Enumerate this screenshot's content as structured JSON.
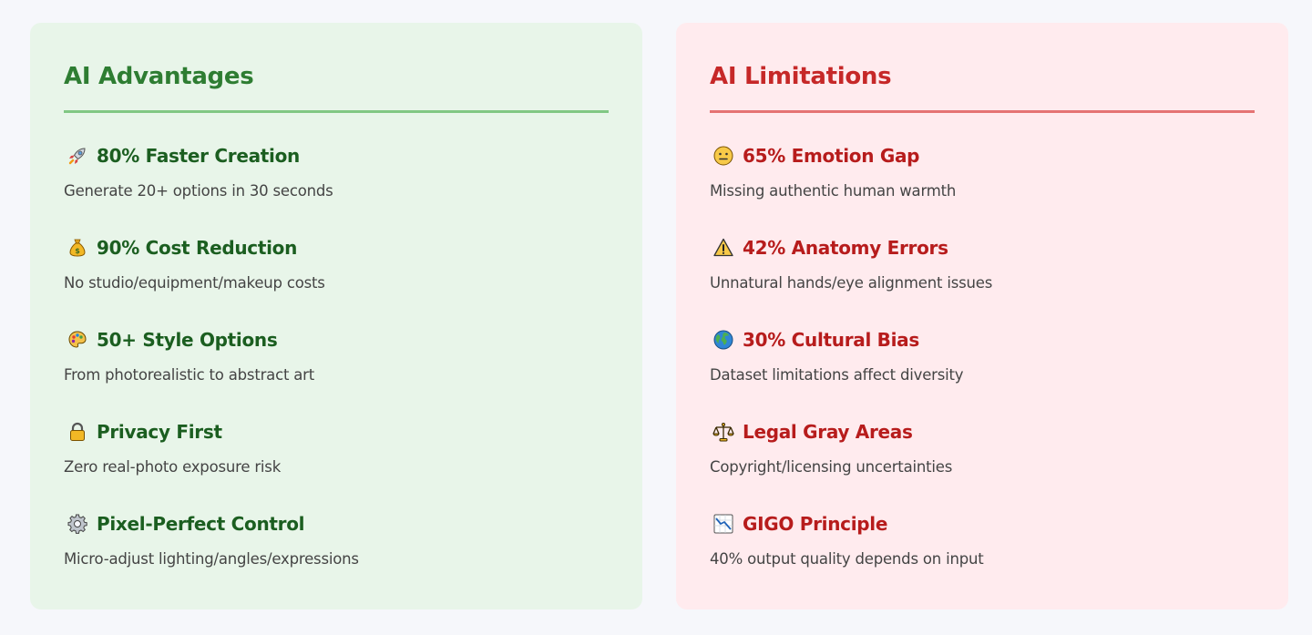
{
  "advantages": {
    "title": "AI Advantages",
    "items": [
      {
        "icon": "rocket-icon",
        "title": "80% Faster Creation",
        "desc": "Generate 20+ options in 30 seconds"
      },
      {
        "icon": "money-bag-icon",
        "title": "90% Cost Reduction",
        "desc": "No studio/equipment/makeup costs"
      },
      {
        "icon": "palette-icon",
        "title": "50+ Style Options",
        "desc": "From photorealistic to abstract art"
      },
      {
        "icon": "lock-icon",
        "title": "Privacy First",
        "desc": "Zero real-photo exposure risk"
      },
      {
        "icon": "gear-icon",
        "title": "Pixel-Perfect Control",
        "desc": "Micro-adjust lighting/angles/expressions"
      }
    ]
  },
  "limitations": {
    "title": "AI Limitations",
    "items": [
      {
        "icon": "neutral-face-icon",
        "title": "65% Emotion Gap",
        "desc": "Missing authentic human warmth"
      },
      {
        "icon": "warning-icon",
        "title": "42% Anatomy Errors",
        "desc": "Unnatural hands/eye alignment issues"
      },
      {
        "icon": "globe-icon",
        "title": "30% Cultural Bias",
        "desc": "Dataset limitations affect diversity"
      },
      {
        "icon": "balance-scale-icon",
        "title": "Legal Gray Areas",
        "desc": "Copyright/licensing uncertainties"
      },
      {
        "icon": "chart-decreasing-icon",
        "title": "GIGO Principle",
        "desc": "40% output quality depends on input"
      }
    ]
  },
  "colors": {
    "advantages_bg": "#e8f5e9",
    "advantages_accent": "#2e7d32",
    "limitations_bg": "#ffebee",
    "limitations_accent": "#c62828"
  }
}
